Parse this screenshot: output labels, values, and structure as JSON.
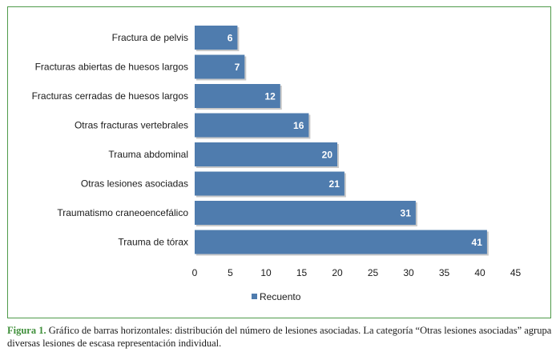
{
  "chart_data": {
    "type": "bar",
    "orientation": "horizontal",
    "categories": [
      "Fractura de pelvis",
      "Fracturas abiertas de huesos largos",
      "Fracturas cerradas de huesos largos",
      "Otras fracturas vertebrales",
      "Trauma abdominal",
      "Otras lesiones asociadas",
      "Traumatismo craneoencefálico",
      "Trauma de tórax"
    ],
    "series": [
      {
        "name": "Recuento",
        "values": [
          6,
          7,
          12,
          16,
          20,
          21,
          31,
          41
        ]
      }
    ],
    "xlim": [
      0,
      45
    ],
    "xticks": [
      "0",
      "5",
      "10",
      "15",
      "20",
      "25",
      "30",
      "35",
      "40",
      "45"
    ],
    "grid": false,
    "data_labels": true,
    "legend_position": "bottom",
    "bar_color": "#4f7cae"
  },
  "caption": {
    "label": "Figura 1.",
    "text": " Gráfico de barras horizontales: distribución del número de lesiones asociadas. La categoría “Otras lesiones asociadas” agrupa diversas lesiones de escasa representación individual."
  },
  "colors": {
    "frame": "#4f9a4a",
    "caption_label": "#3f8f3a"
  }
}
